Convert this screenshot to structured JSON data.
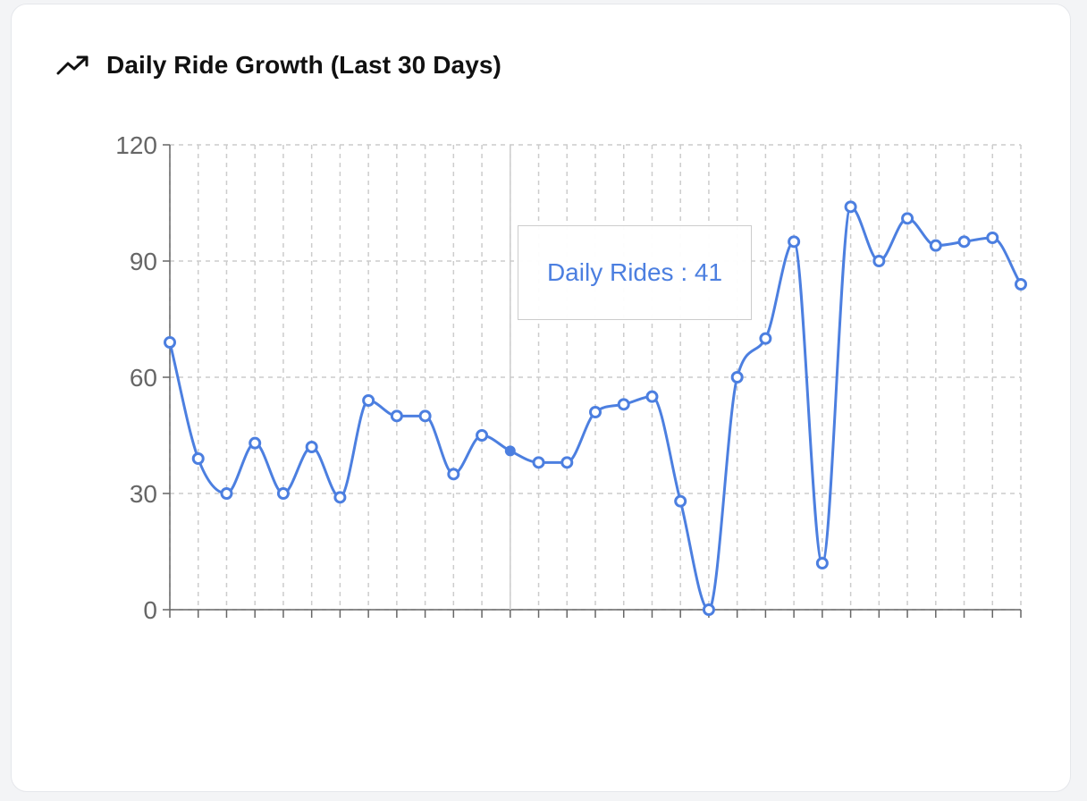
{
  "card": {
    "title": "Daily Ride Growth (Last 30 Days)",
    "icon": "trending-up-icon"
  },
  "tooltip": {
    "label": "Daily Rides : 41",
    "active_index": 12
  },
  "chart_data": {
    "type": "line",
    "title": "Daily Ride Growth (Last 30 Days)",
    "xlabel": "",
    "ylabel": "",
    "ylim": [
      0,
      120
    ],
    "yticks": [
      0,
      30,
      60,
      90,
      120
    ],
    "grid": true,
    "grid_style": "dashed",
    "curve": "smooth",
    "color": "#4c7fe0",
    "series": [
      {
        "name": "Daily Rides",
        "values": [
          69,
          39,
          30,
          43,
          30,
          42,
          29,
          54,
          50,
          50,
          35,
          45,
          41,
          38,
          38,
          51,
          53,
          55,
          28,
          0,
          60,
          70,
          95,
          12,
          104,
          90,
          101,
          94,
          95,
          96,
          84
        ]
      }
    ]
  }
}
